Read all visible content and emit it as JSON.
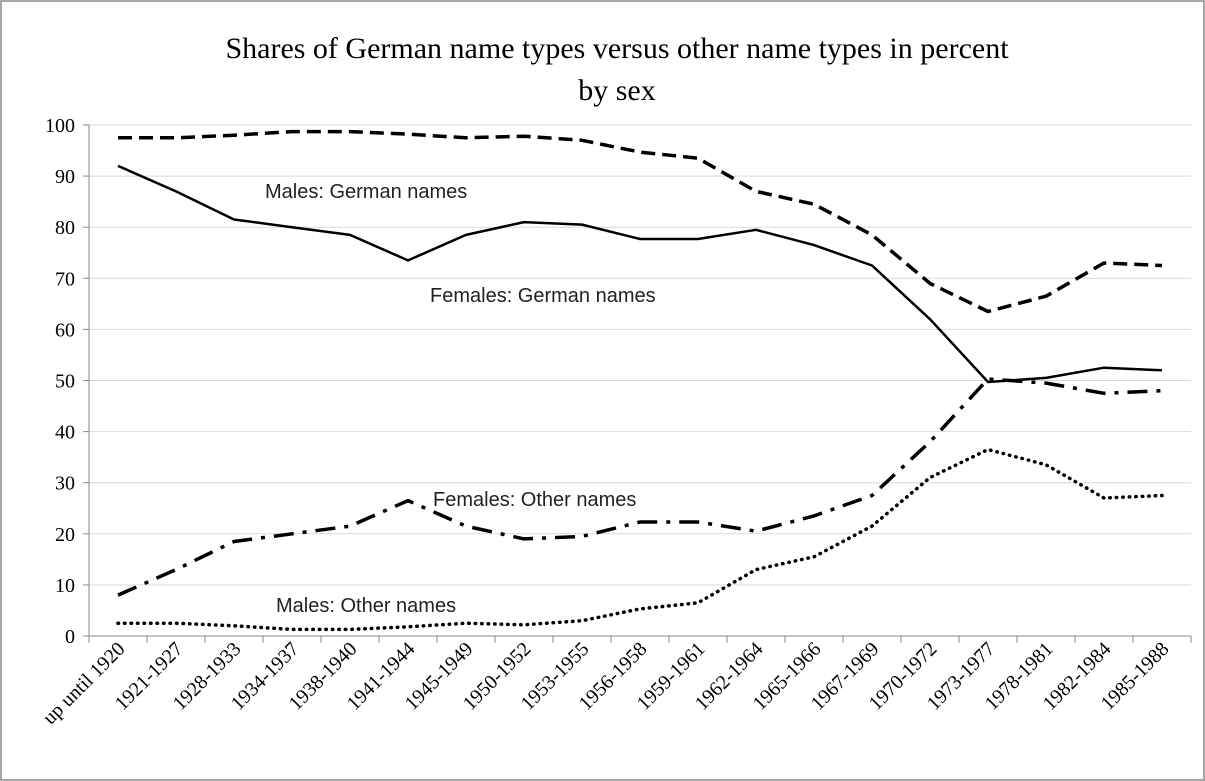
{
  "chart_data": {
    "type": "line",
    "title": [
      "Shares of German name types versus other name types in percent",
      "by sex"
    ],
    "categories": [
      "up until 1920",
      "1921-1927",
      "1928-1933",
      "1934-1937",
      "1938-1940",
      "1941-1944",
      "1945-1949",
      "1950-1952",
      "1953-1955",
      "1956-1958",
      "1959-1961",
      "1962-1964",
      "1965-1966",
      "1967-1969",
      "1970-1972",
      "1973-1977",
      "1978-1981",
      "1982-1984",
      "1985-1988"
    ],
    "series": [
      {
        "name": "Males: German names",
        "color": "#000000",
        "style": "dashed",
        "values": [
          97.5,
          97.5,
          98,
          98.7,
          98.7,
          98.2,
          97.5,
          97.8,
          97,
          94.7,
          93.5,
          87,
          84.5,
          78.5,
          69,
          63.5,
          66.5,
          73,
          72.5
        ]
      },
      {
        "name": "Females: German names",
        "color": "#000000",
        "style": "solid",
        "values": [
          92,
          87,
          81.5,
          80,
          78.5,
          73.5,
          78.5,
          81,
          80.5,
          77.7,
          77.7,
          79.5,
          76.5,
          72.5,
          62,
          49.7,
          50.5,
          52.5,
          52
        ]
      },
      {
        "name": "Females: Other names",
        "color": "#000000",
        "style": "dashdot",
        "values": [
          8,
          13,
          18.5,
          20,
          21.5,
          26.5,
          21.5,
          19,
          19.5,
          22.3,
          22.3,
          20.5,
          23.5,
          27.5,
          38,
          50.3,
          49.5,
          47.5,
          48
        ]
      },
      {
        "name": "Males: Other names",
        "color": "#000000",
        "style": "dotted",
        "values": [
          2.5,
          2.5,
          2,
          1.3,
          1.3,
          1.8,
          2.5,
          2.2,
          3,
          5.3,
          6.5,
          13,
          15.5,
          21.5,
          31,
          36.5,
          33.5,
          27,
          27.5
        ]
      }
    ],
    "ylim": [
      0,
      100
    ],
    "yticks": [
      0,
      10,
      20,
      30,
      40,
      50,
      60,
      70,
      80,
      90,
      100
    ],
    "grid": true
  }
}
